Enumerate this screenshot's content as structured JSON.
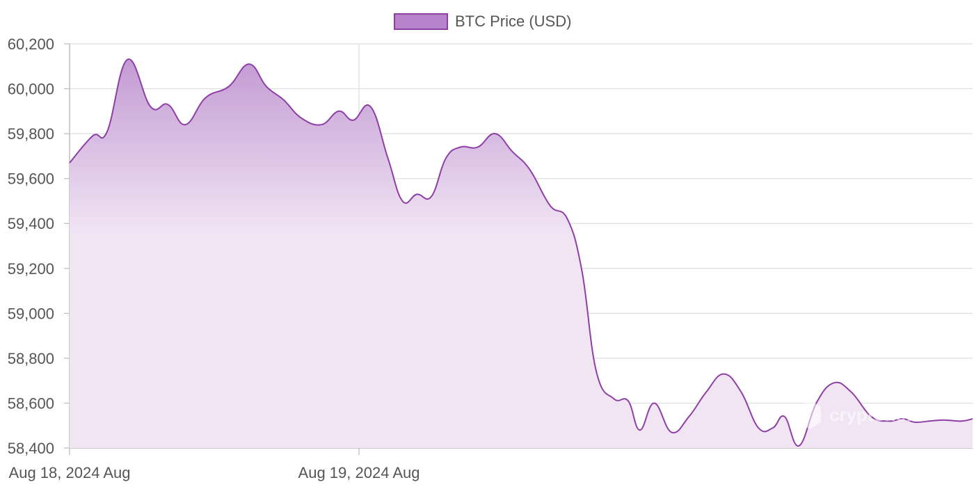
{
  "legend": {
    "label": "BTC Price (USD)"
  },
  "watermark": {
    "text": "cryptonews"
  },
  "colors": {
    "line": "#8e3fa6",
    "fill_top": "#c39bd3",
    "fill_bottom": "#f1e5f4",
    "legend_fill": "#b784cc",
    "grid": "#dddddd",
    "axis": "#bbbbbb",
    "text": "#555555"
  },
  "chart_data": {
    "type": "area",
    "series": [
      {
        "name": "BTC Price (USD)",
        "x": [
          0,
          0.08,
          0.13,
          0.2,
          0.28,
          0.34,
          0.4,
          0.47,
          0.55,
          0.62,
          0.68,
          0.74,
          0.8,
          0.87,
          0.93,
          0.98,
          1.04,
          1.1,
          1.15,
          1.2,
          1.25,
          1.3,
          1.35,
          1.41,
          1.47,
          1.53,
          1.59,
          1.66,
          1.72,
          1.77,
          1.82,
          1.88,
          1.93,
          1.97,
          2.02,
          2.08,
          2.14,
          2.2,
          2.26,
          2.32,
          2.38,
          2.43,
          2.47,
          2.52,
          2.58,
          2.64,
          2.7,
          2.77,
          2.83,
          2.88,
          2.92,
          2.97,
          3.02,
          3.08,
          3.12
        ],
        "y": [
          59670,
          59790,
          59810,
          60130,
          59920,
          59930,
          59840,
          59960,
          60010,
          60110,
          60010,
          59950,
          59870,
          59840,
          59900,
          59860,
          59920,
          59690,
          59500,
          59530,
          59520,
          59690,
          59740,
          59740,
          59800,
          59720,
          59640,
          59480,
          59420,
          59190,
          58740,
          58620,
          58610,
          58480,
          58600,
          58470,
          58540,
          58650,
          58730,
          58650,
          58490,
          58490,
          58540,
          58410,
          58600,
          58690,
          58650,
          58540,
          58520,
          58530,
          58515,
          58520,
          58525,
          58520,
          58530
        ]
      }
    ],
    "x_ticks": [
      {
        "x": 0,
        "label": "Aug 18, 2024 Aug"
      },
      {
        "x": 1,
        "label": "Aug 19, 2024 Aug"
      }
    ],
    "y_ticks": [
      {
        "value": 60200,
        "label": "60,200"
      },
      {
        "value": 60000,
        "label": "60,000"
      },
      {
        "value": 59800,
        "label": "59,800"
      },
      {
        "value": 59600,
        "label": "59,600"
      },
      {
        "value": 59400,
        "label": "59,400"
      },
      {
        "value": 59200,
        "label": "59,200"
      },
      {
        "value": 59000,
        "label": "59,000"
      },
      {
        "value": 58800,
        "label": "58,800"
      },
      {
        "value": 58600,
        "label": "58,600"
      },
      {
        "value": 58400,
        "label": "58,400"
      }
    ],
    "xlim": [
      0,
      3.12
    ],
    "ylim": [
      58400,
      60200
    ],
    "grid": true,
    "legend_position": "top-center",
    "title": "",
    "xlabel": "",
    "ylabel": ""
  }
}
